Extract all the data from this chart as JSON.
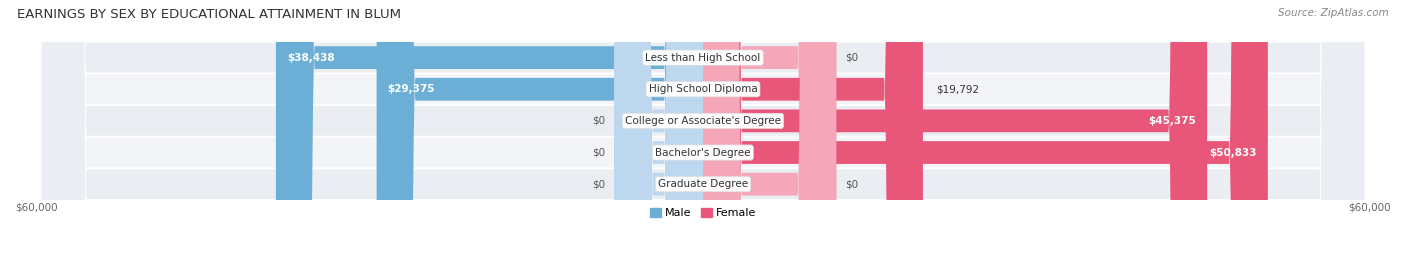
{
  "title": "EARNINGS BY SEX BY EDUCATIONAL ATTAINMENT IN BLUM",
  "source": "Source: ZipAtlas.com",
  "categories": [
    "Less than High School",
    "High School Diploma",
    "College or Associate's Degree",
    "Bachelor's Degree",
    "Graduate Degree"
  ],
  "male_values": [
    38438,
    29375,
    0,
    0,
    0
  ],
  "female_values": [
    0,
    19792,
    45375,
    50833,
    0
  ],
  "male_color_dark": "#6BAED6",
  "male_color_light": "#BDD7EE",
  "female_color_dark": "#E8577A",
  "female_color_light": "#F4A7B9",
  "row_bg_color_odd": "#EAEEF3",
  "row_bg_color_even": "#F2F4F8",
  "xlim": [
    -60000,
    60000
  ],
  "bar_height": 0.72,
  "title_fontsize": 9.5,
  "source_fontsize": 7.5,
  "value_fontsize": 7.5,
  "category_fontsize": 7.5,
  "tick_fontsize": 7.5,
  "legend_fontsize": 8,
  "zero_stub": 8000,
  "graduate_female_stub": 12000
}
